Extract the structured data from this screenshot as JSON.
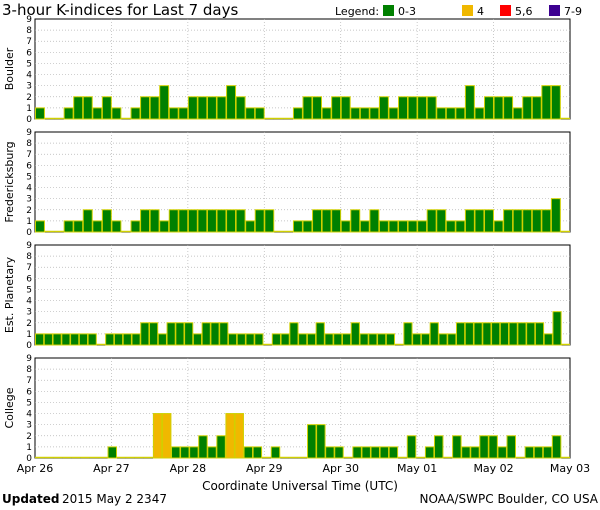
{
  "chart_data": {
    "type": "bar",
    "title": "3-hour K-indices for Last 7 days",
    "legend": {
      "label": "Legend:",
      "items": [
        {
          "label": "0-3",
          "color": "#008000"
        },
        {
          "label": "4",
          "color": "#f0b800"
        },
        {
          "label": "5,6",
          "color": "#ff0000"
        },
        {
          "label": "7-9",
          "color": "#3c0090"
        }
      ]
    },
    "bar_border_color": "#d0d000",
    "ylim": [
      0,
      9
    ],
    "yticks": [
      "0",
      "1",
      "2",
      "3",
      "4",
      "5",
      "6",
      "7",
      "8",
      "9"
    ],
    "xlabel": "Coordinate Universal Time (UTC)",
    "xticks": [
      "Apr 26",
      "Apr 27",
      "Apr 28",
      "Apr 29",
      "Apr 30",
      "May 01",
      "May 02",
      "May 03"
    ],
    "grid": true,
    "series": [
      {
        "name": "Boulder",
        "values": [
          1,
          0,
          0,
          1,
          2,
          2,
          1,
          2,
          1,
          0,
          1,
          2,
          2,
          3,
          1,
          1,
          2,
          2,
          2,
          2,
          3,
          2,
          1,
          1,
          0,
          0,
          0,
          1,
          2,
          2,
          1,
          2,
          2,
          1,
          1,
          1,
          2,
          1,
          2,
          2,
          2,
          2,
          1,
          1,
          1,
          3,
          1,
          2,
          2,
          2,
          1,
          2,
          2,
          3,
          3,
          0
        ]
      },
      {
        "name": "Fredericksburg",
        "values": [
          1,
          0,
          0,
          1,
          1,
          2,
          1,
          2,
          1,
          0,
          1,
          2,
          2,
          1,
          2,
          2,
          2,
          2,
          2,
          2,
          2,
          2,
          1,
          2,
          2,
          0,
          0,
          1,
          1,
          2,
          2,
          2,
          1,
          2,
          1,
          2,
          1,
          1,
          1,
          1,
          1,
          2,
          2,
          1,
          1,
          2,
          2,
          2,
          1,
          2,
          2,
          2,
          2,
          2,
          3,
          0
        ]
      },
      {
        "name": "Est. Planetary",
        "values": [
          1,
          1,
          1,
          1,
          1,
          1,
          1,
          0,
          1,
          1,
          1,
          1,
          2,
          2,
          1,
          2,
          2,
          2,
          1,
          2,
          2,
          2,
          1,
          1,
          1,
          1,
          0,
          1,
          1,
          2,
          1,
          1,
          2,
          1,
          1,
          1,
          2,
          1,
          1,
          1,
          1,
          0,
          2,
          1,
          1,
          2,
          1,
          1,
          2,
          2,
          2,
          2,
          2,
          2,
          2,
          2,
          2,
          2,
          1,
          3,
          0
        ]
      },
      {
        "name": "College",
        "values": [
          0,
          0,
          0,
          0,
          0,
          0,
          0,
          0,
          1,
          0,
          0,
          0,
          0,
          4,
          4,
          1,
          1,
          1,
          2,
          1,
          2,
          4,
          4,
          1,
          1,
          0,
          1,
          0,
          0,
          0,
          3,
          3,
          1,
          1,
          0,
          1,
          1,
          1,
          1,
          1,
          0,
          2,
          0,
          1,
          2,
          0,
          2,
          1,
          1,
          2,
          2,
          1,
          2,
          0,
          1,
          1,
          1,
          2,
          0
        ]
      }
    ]
  },
  "footer": {
    "updated_label": "Updated",
    "updated_value": "2015 May  2 2347",
    "credit": "NOAA/SWPC Boulder, CO USA"
  }
}
